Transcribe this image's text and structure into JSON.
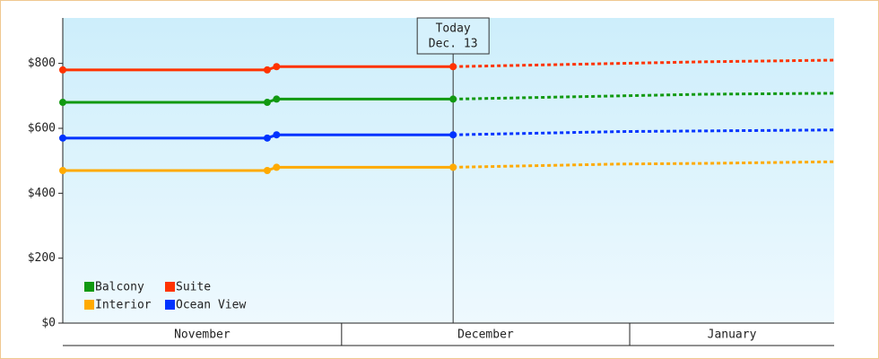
{
  "chart_data": {
    "type": "line",
    "annotation": {
      "lines": [
        "Today",
        "Dec. 13"
      ],
      "x": 42
    },
    "x": [
      0,
      22,
      23,
      42,
      51,
      60,
      69,
      83
    ],
    "xlim": [
      0,
      83
    ],
    "months": [
      "November",
      "December",
      "January"
    ],
    "month_starts": [
      0,
      30,
      61
    ],
    "ylim": [
      0,
      940
    ],
    "yticks": [
      {
        "value": 0,
        "label": "$0"
      },
      {
        "value": 200,
        "label": "$200"
      },
      {
        "value": 400,
        "label": "$400"
      },
      {
        "value": 600,
        "label": "$600"
      },
      {
        "value": 800,
        "label": "$800"
      }
    ],
    "legend": "lower left",
    "series": [
      {
        "name": "Balcony",
        "color": "#119911",
        "values": [
          680,
          680,
          690,
          690,
          null,
          null,
          null,
          null
        ],
        "forecast": [
          null,
          null,
          null,
          690,
          695,
          700,
          705,
          708
        ]
      },
      {
        "name": "Suite",
        "color": "#ff3300",
        "values": [
          780,
          780,
          790,
          790,
          null,
          null,
          null,
          null
        ],
        "forecast": [
          null,
          null,
          null,
          790,
          795,
          800,
          805,
          810
        ]
      },
      {
        "name": "Interior",
        "color": "#ffaa00",
        "values": [
          470,
          470,
          480,
          480,
          null,
          null,
          null,
          null
        ],
        "forecast": [
          null,
          null,
          null,
          480,
          485,
          490,
          492,
          497
        ]
      },
      {
        "name": "Ocean View",
        "color": "#0033ff",
        "values": [
          570,
          570,
          580,
          580,
          null,
          null,
          null,
          null
        ],
        "forecast": [
          null,
          null,
          null,
          580,
          585,
          590,
          592,
          595
        ]
      }
    ]
  }
}
